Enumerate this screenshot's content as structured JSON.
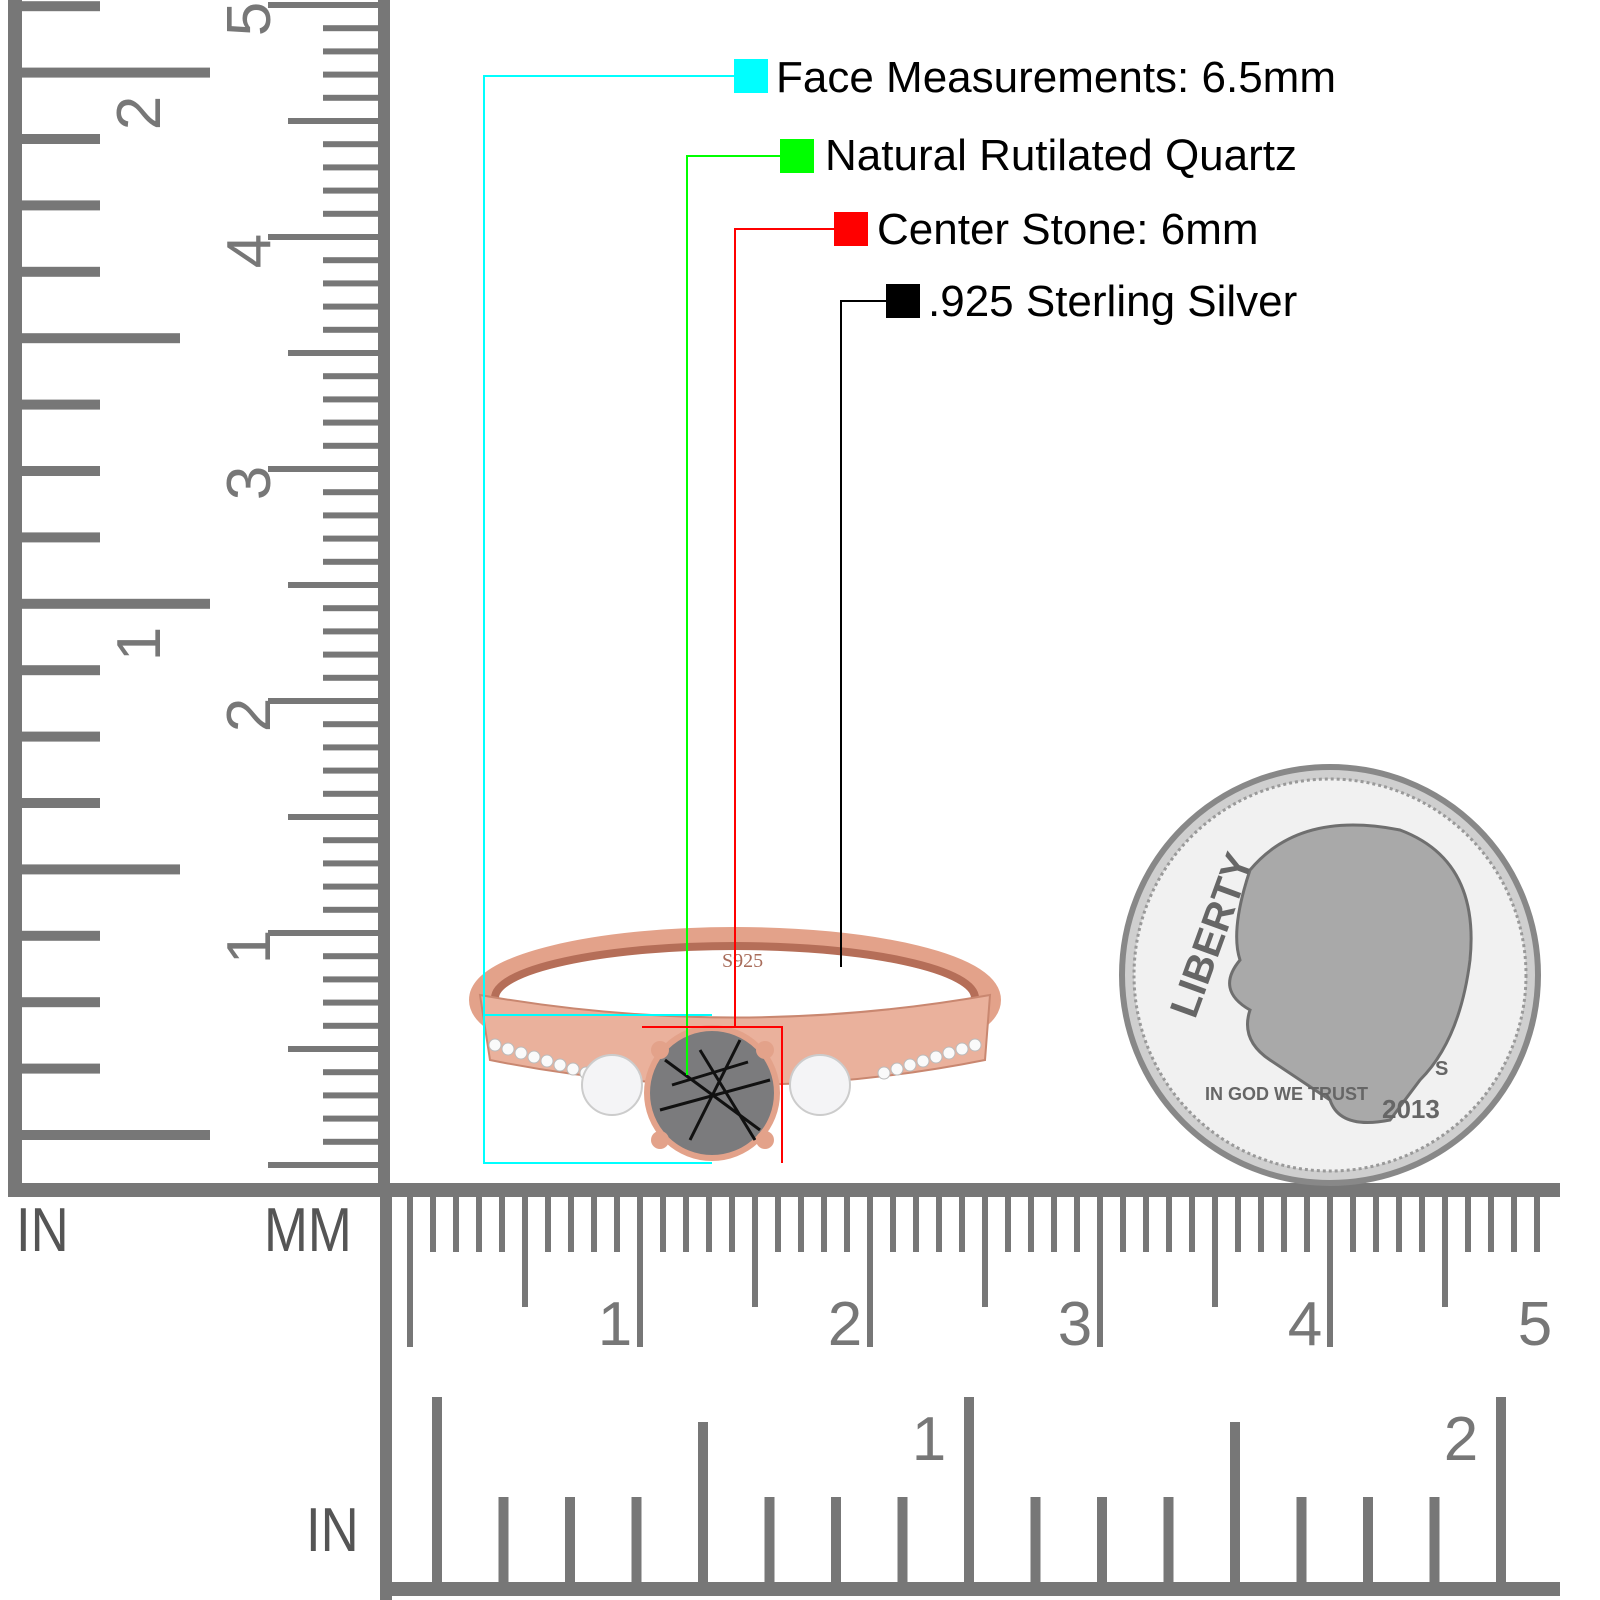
{
  "legend": [
    {
      "text": "Face Measurements: 6.5mm",
      "color": "#00ffff"
    },
    {
      "text": "Natural Rutilated Quartz",
      "color": "#00ff00"
    },
    {
      "text": "Center Stone: 6mm",
      "color": "#ff0000"
    },
    {
      "text": ".925 Sterling Silver",
      "color": "#000000"
    }
  ],
  "ruler": {
    "unit_in_left": "IN",
    "unit_mm": "MM",
    "unit_in_bottom": "IN",
    "vertical_mm_labels": [
      "1",
      "2",
      "3",
      "4",
      "5"
    ],
    "vertical_in_labels": [
      "1",
      "2"
    ],
    "horizontal_mm_labels": [
      "1",
      "2",
      "3",
      "4",
      "5"
    ],
    "horizontal_in_labels": [
      "1",
      "2"
    ],
    "color": "#777777"
  },
  "ring": {
    "stamp": "S925",
    "metal_color": "#e8a58c",
    "stone": "rutilated quartz"
  },
  "coin": {
    "legend_top": "LIBERTY",
    "motto": "IN GOD WE TRUST",
    "year": "2013",
    "mint_mark": "S"
  }
}
